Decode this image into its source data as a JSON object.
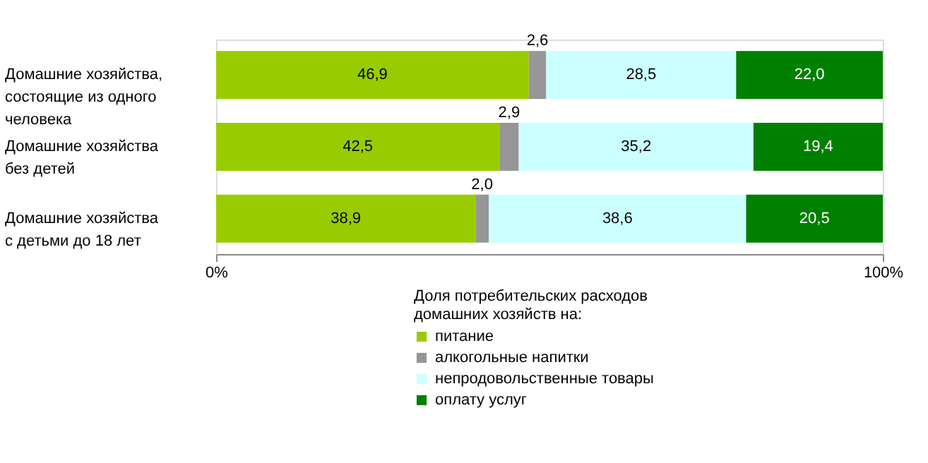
{
  "chart_data": {
    "type": "bar",
    "orientation": "horizontal",
    "stacked": true,
    "categories": [
      "Домашние хозяйства, состоящие из одного человека",
      "Домашние хозяйства без детей",
      "Домашние хозяйства с детьми до 18 лет"
    ],
    "series": [
      {
        "name": "питание",
        "color": "#99cc00",
        "values": [
          46.9,
          42.5,
          38.9
        ],
        "value_labels": [
          "46,9",
          "42,5",
          "38,9"
        ]
      },
      {
        "name": "алкогольные напитки",
        "color": "#969696",
        "values": [
          2.6,
          2.9,
          2.0
        ],
        "value_labels": [
          "2,6",
          "2,9",
          "2,0"
        ]
      },
      {
        "name": "непродовольственные товары",
        "color": "#ccffff",
        "values": [
          28.5,
          35.2,
          38.6
        ],
        "value_labels": [
          "28,5",
          "35,2",
          "38,6"
        ]
      },
      {
        "name": "оплату услуг",
        "color": "#008000",
        "values": [
          22.0,
          19.4,
          20.5
        ],
        "value_labels": [
          "22,0",
          "19,4",
          "20,5"
        ]
      }
    ],
    "xlim": [
      0,
      100
    ],
    "xticks": [
      {
        "value": 0,
        "label": "0%"
      },
      {
        "value": 100,
        "label": "100%"
      }
    ],
    "legend_title": "Доля потребительских расходов домашних хозяйств на:",
    "legend": "bottom"
  }
}
